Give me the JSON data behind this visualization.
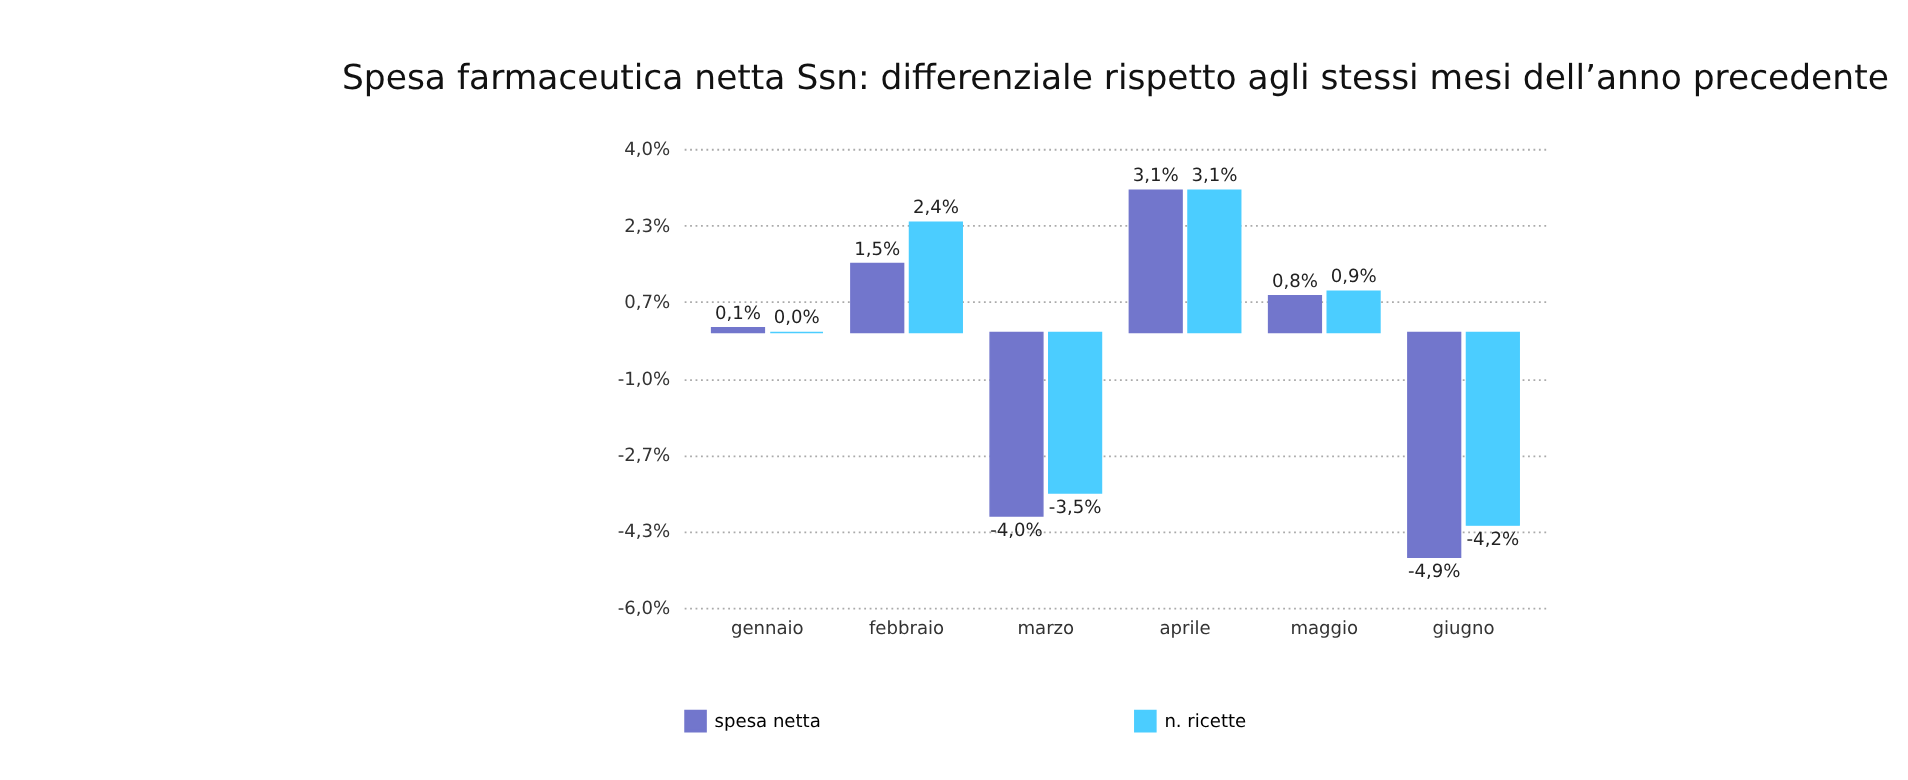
{
  "chart_data": {
    "type": "bar",
    "title": "Spesa farmaceutica netta Ssn: differenziale rispetto agli stessi mesi dell’anno precedente",
    "categories": [
      "gennaio",
      "febbraio",
      "marzo",
      "aprile",
      "maggio",
      "giugno"
    ],
    "series": [
      {
        "name": "spesa netta",
        "color": "#7276cc",
        "values": [
          0.1,
          1.5,
          -4.0,
          3.1,
          0.8,
          -4.9
        ],
        "value_labels": [
          "0,1%",
          "1,5%",
          "-4,0%",
          "3,1%",
          "0,8%",
          "-4,9%"
        ]
      },
      {
        "name": "n. ricette",
        "color": "#4bcdff",
        "values": [
          0.0,
          2.4,
          -3.5,
          3.1,
          0.9,
          -4.2
        ],
        "value_labels": [
          "0,0%",
          "2,4%",
          "-3,5%",
          "3,1%",
          "0,9%",
          "-4,2%"
        ]
      }
    ],
    "ylim": [
      -6.0,
      4.0
    ],
    "yticks": [
      {
        "value": 4.0,
        "label": "4,0%"
      },
      {
        "value": 2.33,
        "label": "2,3%"
      },
      {
        "value": 0.67,
        "label": "0,7%"
      },
      {
        "value": -1.0,
        "label": "-1,0%"
      },
      {
        "value": -2.67,
        "label": "-2,7%"
      },
      {
        "value": -4.33,
        "label": "-4,3%"
      },
      {
        "value": -6.0,
        "label": "-6,0%"
      }
    ],
    "grid": "y",
    "legend": "bottom"
  }
}
